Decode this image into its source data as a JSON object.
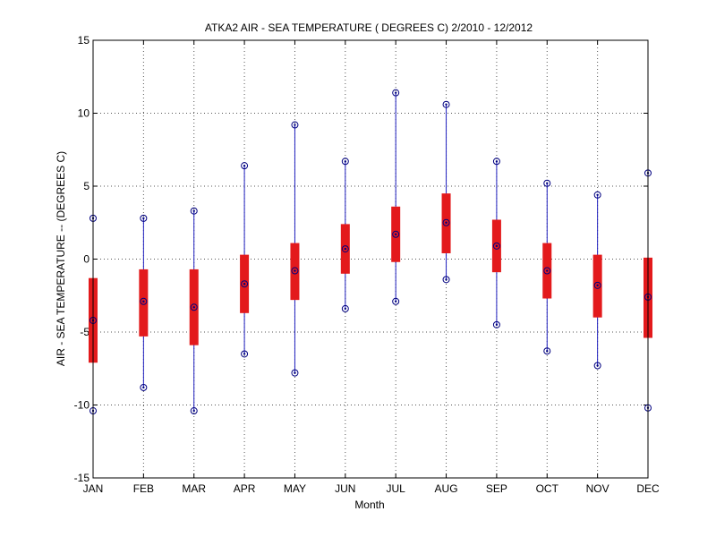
{
  "chart_data": {
    "type": "boxplot",
    "title": "ATKA2  AIR - SEA TEMPERATURE ( DEGREES C) 2/2010 - 12/2012",
    "xlabel": "Month",
    "ylabel": "AIR - SEA TEMPERATURE -- (DEGREES C)",
    "ylim": [
      -15,
      15
    ],
    "yticks": [
      -15,
      -10,
      -5,
      0,
      5,
      10,
      15
    ],
    "grid": true,
    "categories": [
      "JAN",
      "FEB",
      "MAR",
      "APR",
      "MAY",
      "JUN",
      "JUL",
      "AUG",
      "SEP",
      "OCT",
      "NOV",
      "DEC"
    ],
    "min": [
      -10.4,
      -8.8,
      -10.4,
      -6.5,
      -7.8,
      -3.4,
      -2.9,
      -1.4,
      -4.5,
      -6.3,
      -7.3,
      -10.2
    ],
    "q1": [
      -7.1,
      -5.3,
      -5.9,
      -3.7,
      -2.8,
      -1.0,
      -0.2,
      0.4,
      -0.9,
      -2.7,
      -4.0,
      -5.4
    ],
    "median": [
      -4.2,
      -2.9,
      -3.3,
      -1.7,
      -0.8,
      0.7,
      1.7,
      2.5,
      0.9,
      -0.8,
      -1.8,
      -2.6
    ],
    "q3": [
      -1.3,
      -0.7,
      -0.7,
      0.3,
      1.1,
      2.4,
      3.6,
      4.5,
      2.7,
      1.1,
      0.3,
      0.1
    ],
    "max": [
      2.8,
      2.8,
      3.3,
      6.4,
      9.2,
      6.7,
      11.4,
      10.6,
      6.7,
      5.2,
      4.4,
      5.9
    ],
    "colors": {
      "box": "#e31a1c",
      "whisker": "#1f1fbf",
      "marker": "#000080",
      "grid": "#555555"
    }
  }
}
